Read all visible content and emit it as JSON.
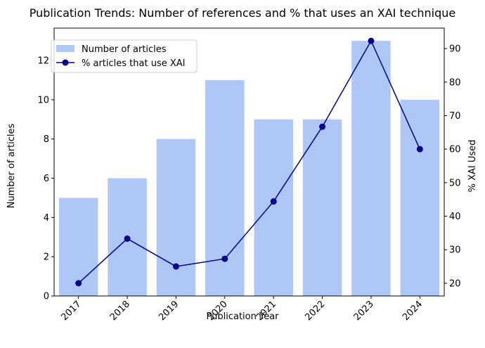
{
  "chart_data": {
    "type": "bar+line",
    "title": "Publication Trends: Number of references and % that uses an XAI technique",
    "xlabel": "Publication Year",
    "ylabel_left": "Number of articles",
    "ylabel_right": "% XAI Used",
    "categories": [
      "2017",
      "2018",
      "2019",
      "2020",
      "2021",
      "2022",
      "2023",
      "2024"
    ],
    "series": [
      {
        "name": "Number of articles",
        "kind": "bar",
        "axis": "left",
        "color": "#aec7f4",
        "values": [
          5,
          6,
          8,
          11,
          9,
          9,
          13,
          10
        ]
      },
      {
        "name": "% articles that use XAI",
        "kind": "line",
        "axis": "right",
        "color": "#00008b",
        "values": [
          20.0,
          33.3,
          25.0,
          27.3,
          44.4,
          66.7,
          92.3,
          60.0
        ]
      }
    ],
    "ylim_left": [
      0,
      13.65
    ],
    "ylim_right": [
      16.2,
      96.1
    ],
    "yticks_left": [
      "0",
      "2",
      "4",
      "6",
      "8",
      "10",
      "12"
    ],
    "yticks_right": [
      "20",
      "30",
      "40",
      "50",
      "60",
      "70",
      "80",
      "90"
    ],
    "x_tick_rotation": 45,
    "legend_position": "upper-left",
    "grid": false
  }
}
